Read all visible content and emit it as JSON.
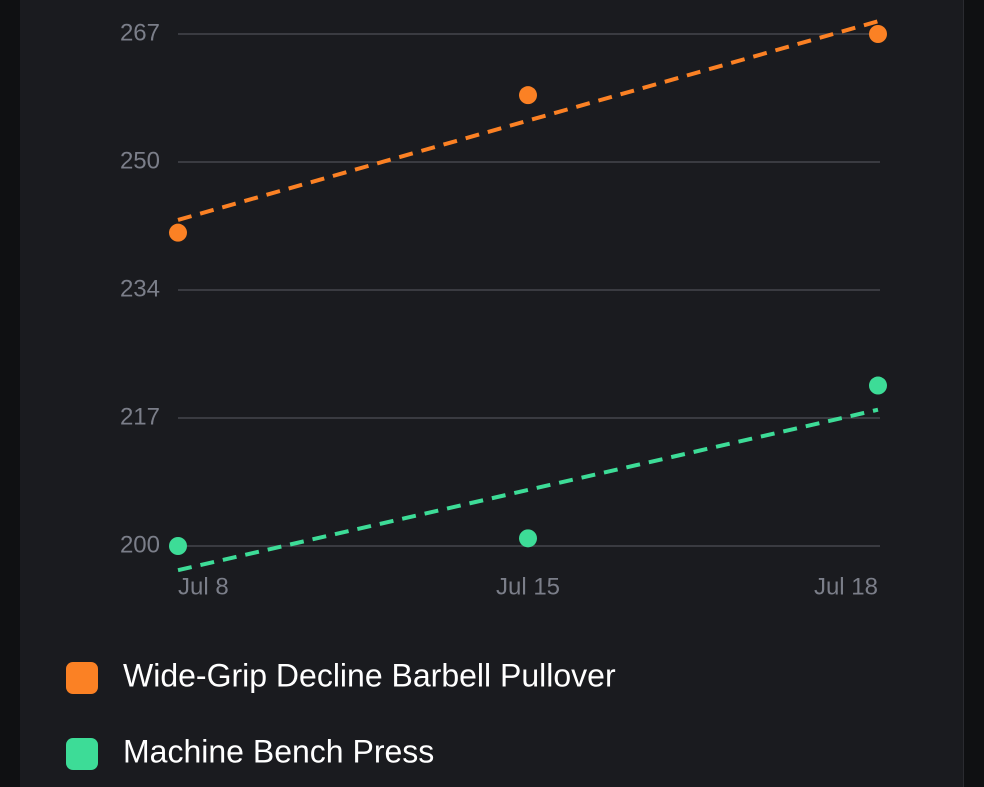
{
  "chart_data": {
    "type": "line",
    "categories": [
      "Jul 8",
      "Jul 15",
      "Jul 18"
    ],
    "series": [
      {
        "name": "Wide-Grip Decline Barbell Pullover",
        "color": "#fb8124",
        "values": [
          241,
          259,
          267
        ]
      },
      {
        "name": "Machine Bench Press",
        "color": "#3ddc97",
        "values": [
          200,
          201,
          221
        ]
      }
    ],
    "ylim": [
      200,
      267
    ],
    "yticks": [
      200,
      {
        "value": 216.75,
        "label": "217"
      },
      {
        "value": 233.5,
        "label": "234"
      },
      {
        "value": 250.25,
        "label": "250"
      },
      267
    ],
    "grid": true,
    "trendline": true,
    "legend": "bottom"
  }
}
